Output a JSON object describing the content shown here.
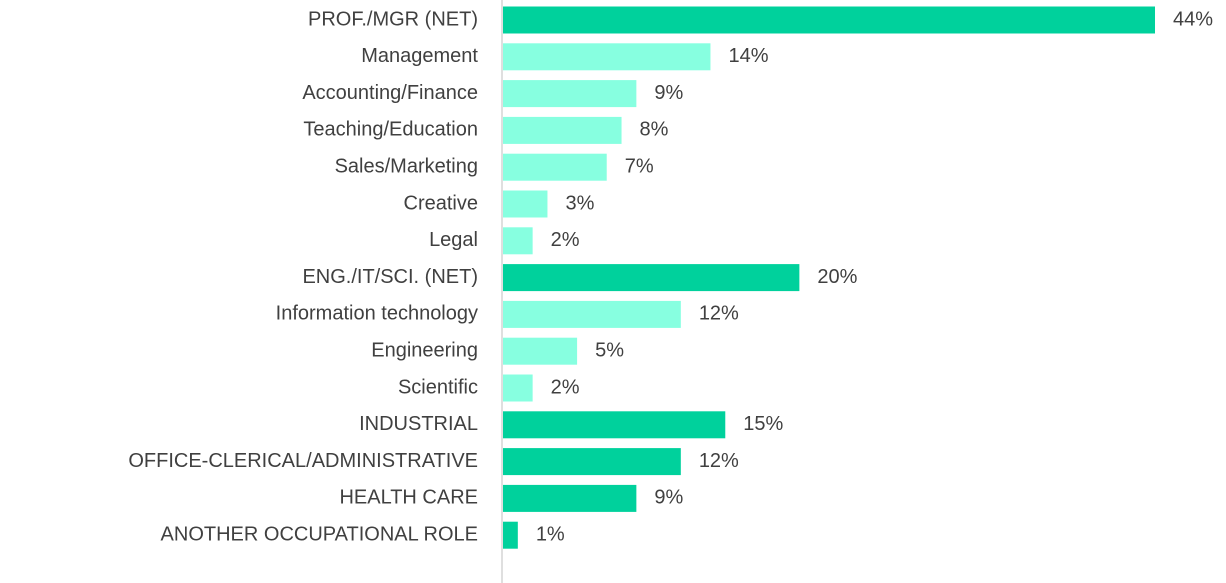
{
  "chart_data": {
    "type": "bar",
    "orientation": "horizontal",
    "categories": [
      "PROF./MGR (NET)",
      "Management",
      "Accounting/Finance",
      "Teaching/Education",
      "Sales/Marketing",
      "Creative",
      "Legal",
      "ENG./IT/SCI. (NET)",
      "Information technology",
      "Engineering",
      "Scientific",
      "INDUSTRIAL",
      "OFFICE-CLERICAL/ADMINISTRATIVE",
      "HEALTH CARE",
      "ANOTHER OCCUPATIONAL ROLE"
    ],
    "values": [
      44,
      14,
      9,
      8,
      7,
      3,
      2,
      20,
      12,
      5,
      2,
      15,
      12,
      9,
      1
    ],
    "value_labels": [
      "44%",
      "14%",
      "9%",
      "8%",
      "7%",
      "3%",
      "2%",
      "20%",
      "12%",
      "5%",
      "2%",
      "15%",
      "12%",
      "9%",
      "1%"
    ],
    "colors": [
      "#00d19c",
      "#87ffe0",
      "#87ffe0",
      "#87ffe0",
      "#87ffe0",
      "#87ffe0",
      "#87ffe0",
      "#00d19c",
      "#87ffe0",
      "#87ffe0",
      "#87ffe0",
      "#00d19c",
      "#00d19c",
      "#00d19c",
      "#00d19c"
    ]
  }
}
